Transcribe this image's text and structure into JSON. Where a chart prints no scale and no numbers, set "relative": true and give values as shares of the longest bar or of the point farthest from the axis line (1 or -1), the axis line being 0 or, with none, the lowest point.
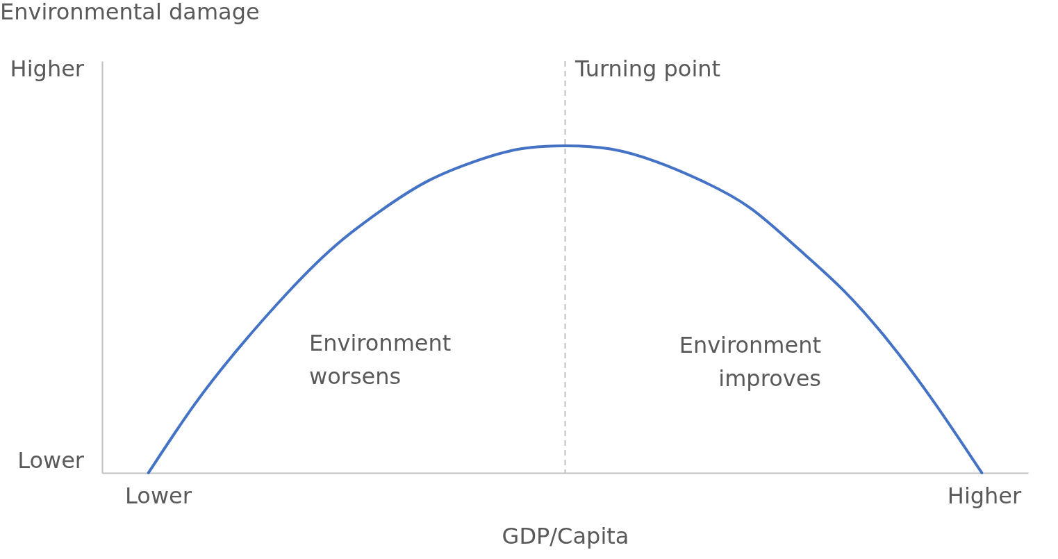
{
  "chart_data": {
    "type": "line",
    "relative": true,
    "xlabel": "GDP/Capita",
    "categories": [
      null,
      null,
      null,
      null,
      null,
      null,
      null,
      null,
      null,
      null,
      null,
      null,
      null,
      null,
      null,
      null,
      null,
      null,
      null
    ],
    "series": [
      {
        "color": "#4472c4",
        "values": [
          0,
          0.21,
          0.39,
          0.55,
          0.69,
          0.8,
          0.89,
          0.95,
          0.99,
          1,
          0.99,
          0.95,
          0.89,
          0.81,
          0.69,
          0.56,
          0.4,
          0.21,
          0
        ]
      }
    ],
    "annotations": [
      "Environmental damage",
      "Turning point",
      "Higher",
      "Lower",
      "Lower",
      "Higher",
      "Environment worsens",
      "Environment improves"
    ],
    "line_style": "solid"
  }
}
